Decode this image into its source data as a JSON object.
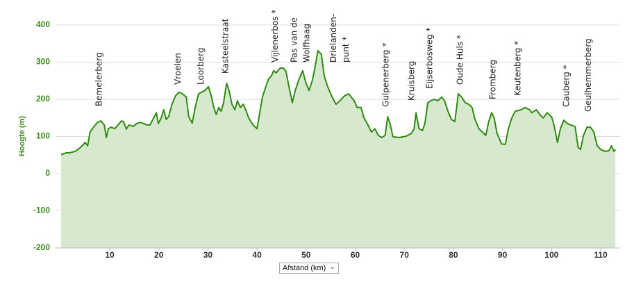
{
  "chart_data": {
    "type": "area",
    "ylabel": "Hoogte (m)",
    "xlabel": "Afstand (km)",
    "color": "#2e8b0f",
    "fill": "#d6e9cf",
    "xlim": [
      0,
      113.5
    ],
    "ylim": [
      -200,
      400
    ],
    "yticks": [
      -200,
      -100,
      0,
      100,
      200,
      300,
      400
    ],
    "xticks": [
      10,
      20,
      30,
      40,
      50,
      60,
      70,
      80,
      90,
      100,
      110
    ],
    "grid": true,
    "x": [
      0.1,
      0.4,
      1.1,
      1.8,
      3,
      3.9,
      4.6,
      5.0,
      5.5,
      6,
      6.7,
      7.5,
      8.2,
      8.9,
      9.3,
      9.7,
      10.3,
      11,
      11.7,
      12.4,
      12.8,
      13.4,
      13.9,
      14.8,
      15.5,
      16.2,
      16.9,
      17.6,
      18.2,
      18.8,
      19.5,
      19.9,
      20.5,
      21,
      21.5,
      22,
      22.7,
      23.4,
      24.1,
      24.8,
      25.6,
      26.1,
      26.8,
      27.4,
      28.1,
      28.7,
      29.4,
      30.1,
      30.7,
      31.2,
      31.7,
      32.2,
      32.7,
      33.2,
      33.8,
      34.3,
      34.9,
      35.5,
      36,
      36.6,
      37.2,
      37.7,
      38.3,
      39.2,
      40,
      40.5,
      41.1,
      41.8,
      42.4,
      42.9,
      43.4,
      43.9,
      44.7,
      45.4,
      45.9,
      46.5,
      47.2,
      47.8,
      48.5,
      49.3,
      49.9,
      50.6,
      51.3,
      52,
      52.4,
      53.1,
      53.7,
      54.4,
      55.3,
      56.1,
      56.9,
      57.8,
      58.7,
      59.2,
      59.8,
      60.4,
      61.2,
      61.8,
      62.6,
      63.3,
      64,
      64.7,
      65.4,
      66.1,
      66.6,
      67.1,
      67.7,
      69,
      70.4,
      71.4,
      72,
      72.4,
      73,
      73.7,
      74.2,
      74.8,
      75.4,
      76.1,
      76.8,
      77.6,
      78.2,
      78.9,
      79.6,
      80.3,
      81,
      81.7,
      82.4,
      83.1,
      83.8,
      84.4,
      85.2,
      85.9,
      86.6,
      87.2,
      87.8,
      88.3,
      88.9,
      89.8,
      90.6,
      91.2,
      91.9,
      92.6,
      93.8,
      94.6,
      95.5,
      96,
      96.9,
      97.6,
      98.3,
      99.1,
      100,
      100.5,
      101.2,
      101.8,
      102.5,
      103.2,
      103.9,
      104.8,
      105.4,
      105.9,
      106.5,
      107.2,
      107.9,
      108.6,
      109.3,
      110.1,
      111,
      111.7,
      112.2,
      112.7,
      113
    ],
    "values": [
      52,
      52,
      56,
      56,
      60,
      69,
      78,
      84,
      75,
      112,
      125,
      138,
      142,
      131,
      97,
      121,
      125,
      121,
      131,
      142,
      140,
      120,
      131,
      127,
      135,
      138,
      135,
      131,
      131,
      146,
      164,
      135,
      150,
      172,
      146,
      153,
      187,
      209,
      219,
      215,
      206,
      153,
      136,
      178,
      215,
      219,
      224,
      234,
      209,
      178,
      159,
      178,
      168,
      191,
      243,
      224,
      187,
      172,
      196,
      178,
      187,
      172,
      150,
      131,
      121,
      159,
      206,
      234,
      256,
      262,
      277,
      271,
      284,
      284,
      275,
      234,
      191,
      224,
      252,
      277,
      247,
      224,
      252,
      299,
      331,
      321,
      262,
      234,
      206,
      187,
      196,
      209,
      215,
      206,
      196,
      178,
      178,
      150,
      131,
      112,
      121,
      103,
      97,
      103,
      153,
      135,
      99,
      97,
      101,
      108,
      120,
      164,
      121,
      116,
      135,
      191,
      196,
      200,
      196,
      206,
      196,
      168,
      146,
      140,
      215,
      206,
      191,
      187,
      178,
      146,
      121,
      112,
      103,
      140,
      164,
      150,
      108,
      80,
      79,
      121,
      150,
      168,
      172,
      178,
      172,
      164,
      172,
      159,
      150,
      164,
      153,
      131,
      84,
      121,
      144,
      135,
      131,
      127,
      71,
      65,
      103,
      125,
      125,
      112,
      75,
      64,
      60,
      62,
      75,
      60,
      65
    ],
    "annotations": [
      {
        "x": 7.9,
        "lines": [
          "Bemelerberg"
        ]
      },
      {
        "x": 23.9,
        "lines": [
          "Vroelen"
        ]
      },
      {
        "x": 28.6,
        "lines": [
          "Loorberg"
        ]
      },
      {
        "x": 33.6,
        "lines": [
          "Kasteelstraat"
        ]
      },
      {
        "x": 43.7,
        "lines": [
          "Vijlenerbos *"
        ]
      },
      {
        "x": 48.9,
        "lines": [
          "Pas van de",
          "Wolfhaag"
        ]
      },
      {
        "x": 56.9,
        "lines": [
          "Drielanden-",
          "punt *"
        ]
      },
      {
        "x": 66.3,
        "lines": [
          "Gulpenerberg *"
        ]
      },
      {
        "x": 71.5,
        "lines": [
          "Kruisberg"
        ]
      },
      {
        "x": 75.2,
        "lines": [
          "Eijserbosweg *"
        ]
      },
      {
        "x": 81.4,
        "lines": [
          "Oude Huls *"
        ]
      },
      {
        "x": 88.1,
        "lines": [
          "Fromberg"
        ]
      },
      {
        "x": 93.2,
        "lines": [
          "Keutenberg *"
        ]
      },
      {
        "x": 103.1,
        "lines": [
          "Cauberg *"
        ]
      },
      {
        "x": 107.5,
        "lines": [
          "Geulhemmerberg"
        ]
      }
    ]
  }
}
